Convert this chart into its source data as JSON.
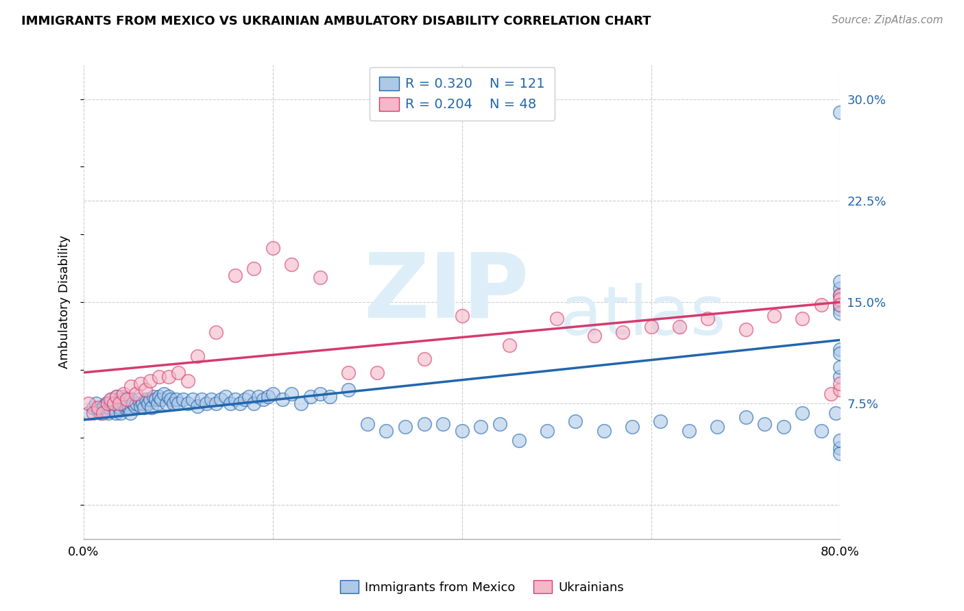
{
  "title": "IMMIGRANTS FROM MEXICO VS UKRAINIAN AMBULATORY DISABILITY CORRELATION CHART",
  "source": "Source: ZipAtlas.com",
  "ylabel": "Ambulatory Disability",
  "yticks": [
    0.0,
    0.075,
    0.15,
    0.225,
    0.3
  ],
  "ytick_labels": [
    "",
    "7.5%",
    "15.0%",
    "22.5%",
    "30.0%"
  ],
  "xlim": [
    0.0,
    0.8
  ],
  "ylim": [
    -0.025,
    0.325
  ],
  "legend_r1": "R = 0.320",
  "legend_n1": "N = 121",
  "legend_r2": "R = 0.204",
  "legend_n2": "N = 48",
  "color_blue": "#aec8e8",
  "color_pink": "#f4b8c8",
  "line_blue": "#2166ac",
  "line_pink": "#d63a6e",
  "watermark_zip": "ZIP",
  "watermark_atlas": "atlas",
  "watermark_color": "#ddeef8",
  "mexico_x": [
    0.005,
    0.01,
    0.013,
    0.015,
    0.018,
    0.02,
    0.022,
    0.024,
    0.025,
    0.026,
    0.027,
    0.028,
    0.03,
    0.031,
    0.032,
    0.033,
    0.034,
    0.035,
    0.036,
    0.037,
    0.038,
    0.039,
    0.04,
    0.041,
    0.042,
    0.043,
    0.044,
    0.045,
    0.046,
    0.047,
    0.048,
    0.049,
    0.05,
    0.052,
    0.054,
    0.056,
    0.058,
    0.06,
    0.062,
    0.064,
    0.066,
    0.068,
    0.07,
    0.072,
    0.074,
    0.076,
    0.078,
    0.08,
    0.082,
    0.085,
    0.088,
    0.09,
    0.092,
    0.095,
    0.098,
    0.1,
    0.105,
    0.11,
    0.115,
    0.12,
    0.125,
    0.13,
    0.135,
    0.14,
    0.145,
    0.15,
    0.155,
    0.16,
    0.165,
    0.17,
    0.175,
    0.18,
    0.185,
    0.19,
    0.195,
    0.2,
    0.21,
    0.22,
    0.23,
    0.24,
    0.25,
    0.26,
    0.28,
    0.3,
    0.32,
    0.34,
    0.36,
    0.38,
    0.4,
    0.42,
    0.44,
    0.46,
    0.49,
    0.52,
    0.55,
    0.58,
    0.61,
    0.64,
    0.67,
    0.7,
    0.72,
    0.74,
    0.76,
    0.78,
    0.795,
    0.8,
    0.8,
    0.8,
    0.8,
    0.8,
    0.8,
    0.8,
    0.8,
    0.8,
    0.8,
    0.8,
    0.8,
    0.8,
    0.8,
    0.8,
    0.8
  ],
  "mexico_y": [
    0.068,
    0.072,
    0.075,
    0.07,
    0.068,
    0.072,
    0.073,
    0.075,
    0.07,
    0.068,
    0.072,
    0.075,
    0.078,
    0.072,
    0.075,
    0.07,
    0.068,
    0.08,
    0.075,
    0.073,
    0.072,
    0.068,
    0.08,
    0.075,
    0.078,
    0.074,
    0.072,
    0.078,
    0.073,
    0.075,
    0.072,
    0.068,
    0.078,
    0.075,
    0.073,
    0.075,
    0.078,
    0.073,
    0.075,
    0.072,
    0.078,
    0.075,
    0.078,
    0.072,
    0.08,
    0.078,
    0.075,
    0.08,
    0.078,
    0.082,
    0.075,
    0.08,
    0.078,
    0.075,
    0.078,
    0.075,
    0.078,
    0.075,
    0.078,
    0.073,
    0.078,
    0.075,
    0.078,
    0.075,
    0.078,
    0.08,
    0.075,
    0.078,
    0.075,
    0.078,
    0.08,
    0.075,
    0.08,
    0.078,
    0.08,
    0.082,
    0.078,
    0.082,
    0.075,
    0.08,
    0.082,
    0.08,
    0.085,
    0.06,
    0.055,
    0.058,
    0.06,
    0.06,
    0.055,
    0.058,
    0.06,
    0.048,
    0.055,
    0.062,
    0.055,
    0.058,
    0.062,
    0.055,
    0.058,
    0.065,
    0.06,
    0.058,
    0.068,
    0.055,
    0.068,
    0.155,
    0.148,
    0.145,
    0.16,
    0.115,
    0.042,
    0.038,
    0.048,
    0.095,
    0.102,
    0.112,
    0.155,
    0.165,
    0.148,
    0.142,
    0.29
  ],
  "ukraine_x": [
    0.005,
    0.01,
    0.015,
    0.02,
    0.025,
    0.028,
    0.032,
    0.035,
    0.038,
    0.042,
    0.046,
    0.05,
    0.055,
    0.06,
    0.065,
    0.07,
    0.08,
    0.09,
    0.1,
    0.11,
    0.12,
    0.14,
    0.16,
    0.18,
    0.2,
    0.22,
    0.25,
    0.28,
    0.31,
    0.36,
    0.4,
    0.45,
    0.5,
    0.54,
    0.57,
    0.6,
    0.63,
    0.66,
    0.7,
    0.73,
    0.76,
    0.78,
    0.79,
    0.8,
    0.8,
    0.8,
    0.8,
    0.8
  ],
  "ukraine_y": [
    0.075,
    0.068,
    0.072,
    0.068,
    0.075,
    0.078,
    0.075,
    0.08,
    0.075,
    0.082,
    0.078,
    0.088,
    0.082,
    0.09,
    0.085,
    0.092,
    0.095,
    0.095,
    0.098,
    0.092,
    0.11,
    0.128,
    0.17,
    0.175,
    0.19,
    0.178,
    0.168,
    0.098,
    0.098,
    0.108,
    0.14,
    0.118,
    0.138,
    0.125,
    0.128,
    0.132,
    0.132,
    0.138,
    0.13,
    0.14,
    0.138,
    0.148,
    0.082,
    0.155,
    0.152,
    0.148,
    0.085,
    0.09
  ]
}
